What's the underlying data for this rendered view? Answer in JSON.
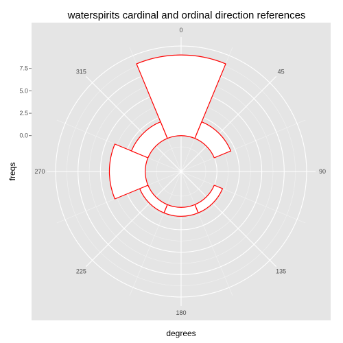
{
  "chart_data": {
    "type": "bar",
    "coord": "polar",
    "title": "waterspirits cardinal and ordinal direction references",
    "xlabel": "degrees",
    "ylabel": "freqs",
    "x_ticks": [
      "0",
      "45",
      "90",
      "135",
      "180",
      "225",
      "270",
      "315"
    ],
    "y_ticks": [
      "0.0",
      "2.5",
      "5.0",
      "7.5"
    ],
    "x_range": [
      0,
      360
    ],
    "y_range": [
      -4,
      11
    ],
    "bar_width_degrees": 45,
    "categories": [
      0,
      45,
      90,
      135,
      180,
      225,
      270,
      315
    ],
    "values": [
      9,
      2,
      0,
      1,
      1,
      1,
      4,
      2
    ],
    "bar_fill": "#ffffff",
    "bar_outline": "#ff0000",
    "panel_background": "#e5e5e5",
    "grid_color": "#ffffff",
    "grid": true
  }
}
